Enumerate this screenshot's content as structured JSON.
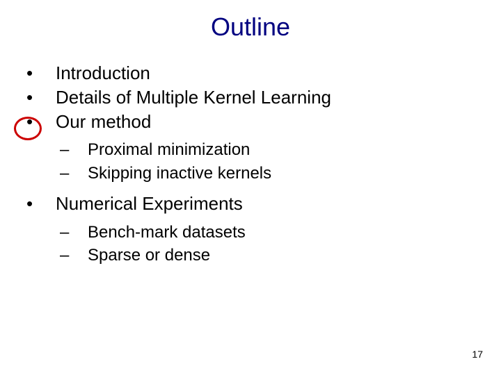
{
  "title": "Outline",
  "bullets": [
    {
      "text": "Introduction"
    },
    {
      "text": "Details of Multiple Kernel Learning"
    },
    {
      "text": "Our method",
      "subs": [
        {
          "text": "Proximal minimization"
        },
        {
          "text": "Skipping inactive kernels"
        }
      ]
    },
    {
      "text": "Numerical Experiments",
      "subs": [
        {
          "text": "Bench-mark datasets"
        },
        {
          "text": "Sparse or dense"
        }
      ]
    }
  ],
  "bulletMark": "•",
  "subMark": "–",
  "pageNumber": "17",
  "colors": {
    "titleColor": "#000080",
    "textColor": "#000000",
    "highlightColor": "#cc0000",
    "background": "#ffffff"
  }
}
